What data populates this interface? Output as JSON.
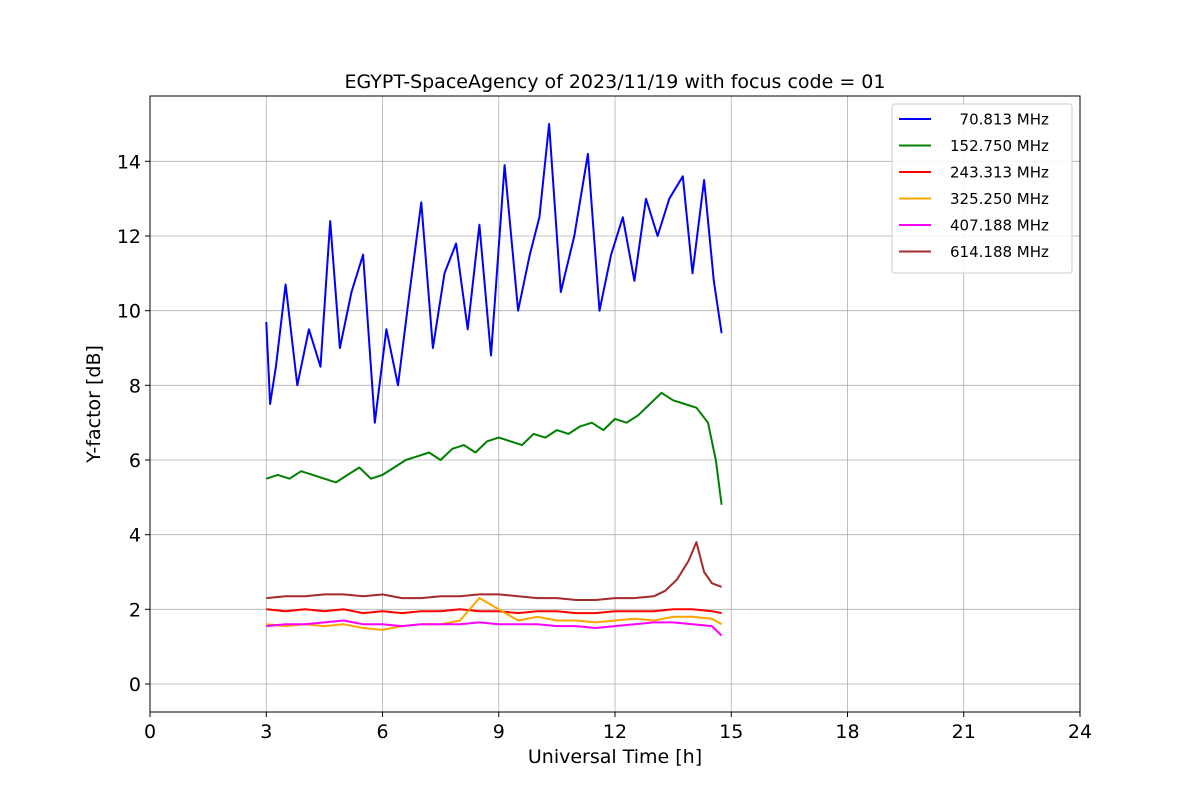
{
  "chart_data": {
    "type": "line",
    "title": "EGYPT-SpaceAgency of 2023/11/19 with focus code = 01",
    "xlabel": "Universal Time [h]",
    "ylabel": "Y-factor [dB]",
    "xlim": [
      0,
      24
    ],
    "ylim": [
      -0.75,
      15.75
    ],
    "xticks": [
      0,
      3,
      6,
      9,
      12,
      15,
      18,
      21,
      24
    ],
    "yticks": [
      0,
      2,
      4,
      6,
      8,
      10,
      12,
      14
    ],
    "grid": true,
    "legend_position": "top-right",
    "series": [
      {
        "name": "  70.813 MHz",
        "color": "#0000ff",
        "x": [
          3.0,
          3.1,
          3.25,
          3.5,
          3.8,
          4.1,
          4.4,
          4.65,
          4.9,
          5.2,
          5.5,
          5.8,
          6.1,
          6.4,
          6.7,
          7.0,
          7.3,
          7.6,
          7.9,
          8.2,
          8.5,
          8.8,
          9.15,
          9.5,
          9.8,
          10.05,
          10.3,
          10.6,
          10.95,
          11.3,
          11.6,
          11.9,
          12.2,
          12.5,
          12.8,
          13.1,
          13.4,
          13.75,
          14.0,
          14.3,
          14.55,
          14.75
        ],
        "y": [
          9.7,
          7.5,
          8.5,
          10.7,
          8.0,
          9.5,
          8.5,
          12.4,
          9.0,
          10.5,
          11.5,
          7.0,
          9.5,
          8.0,
          10.5,
          12.9,
          9.0,
          11.0,
          11.8,
          9.5,
          12.3,
          8.8,
          13.9,
          10.0,
          11.5,
          12.5,
          15.0,
          10.5,
          12.0,
          14.2,
          10.0,
          11.5,
          12.5,
          10.8,
          13.0,
          12.0,
          13.0,
          13.6,
          11.0,
          13.5,
          10.8,
          9.4
        ]
      },
      {
        "name": "152.750 MHz",
        "color": "#008000",
        "x": [
          3.0,
          3.3,
          3.6,
          3.9,
          4.2,
          4.5,
          4.8,
          5.1,
          5.4,
          5.7,
          6.0,
          6.3,
          6.6,
          6.9,
          7.2,
          7.5,
          7.8,
          8.1,
          8.4,
          8.7,
          9.0,
          9.3,
          9.6,
          9.9,
          10.2,
          10.5,
          10.8,
          11.1,
          11.4,
          11.7,
          12.0,
          12.3,
          12.6,
          12.9,
          13.2,
          13.5,
          13.8,
          14.1,
          14.4,
          14.6,
          14.75
        ],
        "y": [
          5.5,
          5.6,
          5.5,
          5.7,
          5.6,
          5.5,
          5.4,
          5.6,
          5.8,
          5.5,
          5.6,
          5.8,
          6.0,
          6.1,
          6.2,
          6.0,
          6.3,
          6.4,
          6.2,
          6.5,
          6.6,
          6.5,
          6.4,
          6.7,
          6.6,
          6.8,
          6.7,
          6.9,
          7.0,
          6.8,
          7.1,
          7.0,
          7.2,
          7.5,
          7.8,
          7.6,
          7.5,
          7.4,
          7.0,
          6.0,
          4.8
        ]
      },
      {
        "name": "243.313 MHz",
        "color": "#ff0000",
        "x": [
          3.0,
          3.5,
          4.0,
          4.5,
          5.0,
          5.5,
          6.0,
          6.5,
          7.0,
          7.5,
          8.0,
          8.5,
          9.0,
          9.5,
          10.0,
          10.5,
          11.0,
          11.5,
          12.0,
          12.5,
          13.0,
          13.5,
          14.0,
          14.5,
          14.75
        ],
        "y": [
          2.0,
          1.95,
          2.0,
          1.95,
          2.0,
          1.9,
          1.95,
          1.9,
          1.95,
          1.95,
          2.0,
          1.95,
          1.95,
          1.9,
          1.95,
          1.95,
          1.9,
          1.9,
          1.95,
          1.95,
          1.95,
          2.0,
          2.0,
          1.95,
          1.9
        ]
      },
      {
        "name": "325.250 MHz",
        "color": "#ffa500",
        "x": [
          3.0,
          3.5,
          4.0,
          4.5,
          5.0,
          5.5,
          6.0,
          6.5,
          7.0,
          7.5,
          8.0,
          8.5,
          9.0,
          9.5,
          10.0,
          10.5,
          11.0,
          11.5,
          12.0,
          12.5,
          13.0,
          13.5,
          14.0,
          14.5,
          14.75
        ],
        "y": [
          1.6,
          1.55,
          1.6,
          1.55,
          1.6,
          1.5,
          1.45,
          1.55,
          1.6,
          1.6,
          1.7,
          2.3,
          2.0,
          1.7,
          1.8,
          1.7,
          1.7,
          1.65,
          1.7,
          1.75,
          1.7,
          1.8,
          1.8,
          1.75,
          1.6
        ]
      },
      {
        "name": "407.188 MHz",
        "color": "#ff00ff",
        "x": [
          3.0,
          3.5,
          4.0,
          4.5,
          5.0,
          5.5,
          6.0,
          6.5,
          7.0,
          7.5,
          8.0,
          8.5,
          9.0,
          9.5,
          10.0,
          10.5,
          11.0,
          11.5,
          12.0,
          12.5,
          13.0,
          13.5,
          14.0,
          14.5,
          14.75
        ],
        "y": [
          1.55,
          1.6,
          1.6,
          1.65,
          1.7,
          1.6,
          1.6,
          1.55,
          1.6,
          1.6,
          1.6,
          1.65,
          1.6,
          1.6,
          1.6,
          1.55,
          1.55,
          1.5,
          1.55,
          1.6,
          1.65,
          1.65,
          1.6,
          1.55,
          1.3
        ]
      },
      {
        "name": "614.188 MHz",
        "color": "#a52a2a",
        "x": [
          3.0,
          3.5,
          4.0,
          4.5,
          5.0,
          5.5,
          6.0,
          6.5,
          7.0,
          7.5,
          8.0,
          8.5,
          9.0,
          9.5,
          10.0,
          10.5,
          11.0,
          11.5,
          12.0,
          12.5,
          13.0,
          13.3,
          13.6,
          13.9,
          14.1,
          14.3,
          14.5,
          14.75
        ],
        "y": [
          2.3,
          2.35,
          2.35,
          2.4,
          2.4,
          2.35,
          2.4,
          2.3,
          2.3,
          2.35,
          2.35,
          2.4,
          2.4,
          2.35,
          2.3,
          2.3,
          2.25,
          2.25,
          2.3,
          2.3,
          2.35,
          2.5,
          2.8,
          3.3,
          3.8,
          3.0,
          2.7,
          2.6
        ]
      }
    ]
  }
}
